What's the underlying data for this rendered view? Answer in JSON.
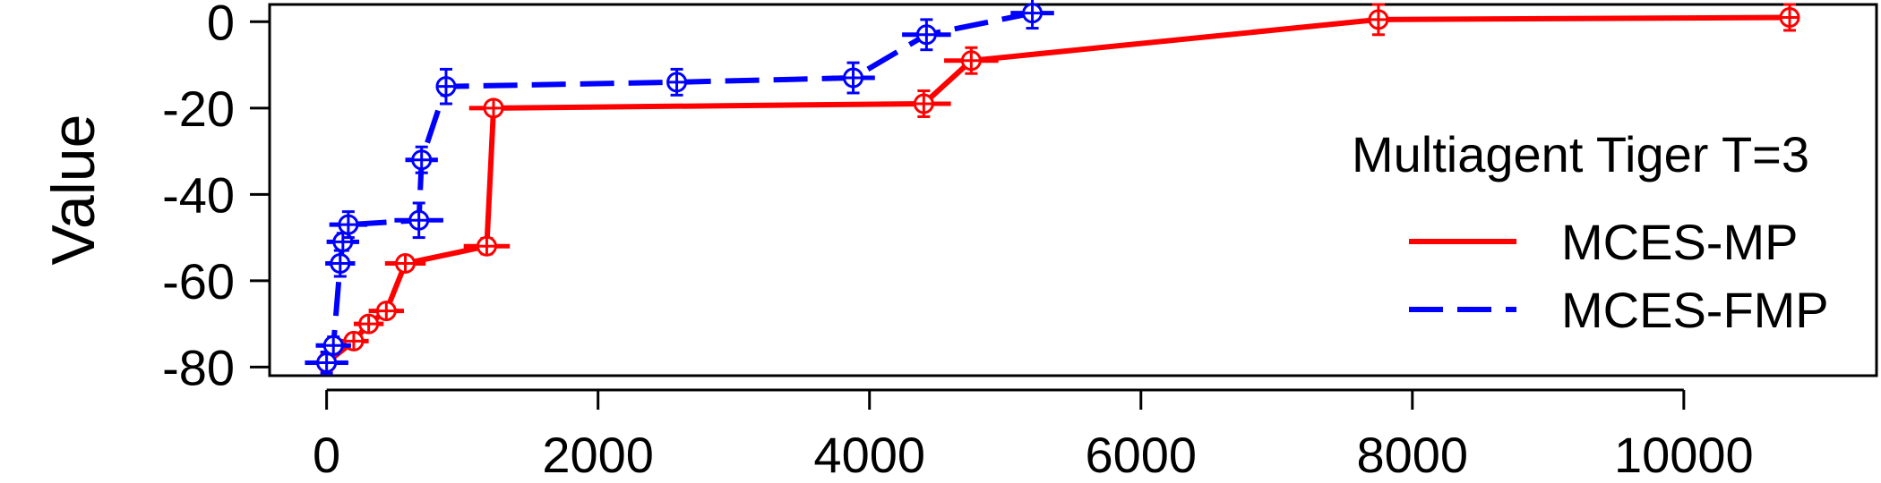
{
  "chart_data": {
    "type": "line",
    "ylabel": "Value",
    "xlabel": "",
    "xlim": [
      -420,
      11420
    ],
    "ylim": [
      -82,
      4
    ],
    "x_ticks": [
      0,
      2000,
      4000,
      6000,
      8000,
      10000
    ],
    "y_ticks": [
      0,
      -20,
      -40,
      -60,
      -80
    ],
    "grid": false,
    "legend": {
      "title": "Multiagent Tiger T=3",
      "placement": "right",
      "entries": [
        "MCES-MP",
        "MCES-FMP"
      ]
    },
    "series": [
      {
        "name": "MCES-MP",
        "color": "#ff0000",
        "dash": "solid",
        "points": [
          {
            "x": 0,
            "y": -79,
            "xerr": 80,
            "yerr": 2.0
          },
          {
            "x": 200,
            "y": -74,
            "xerr": 110,
            "yerr": 1.5
          },
          {
            "x": 310,
            "y": -70,
            "xerr": 110,
            "yerr": 1.5
          },
          {
            "x": 440,
            "y": -67,
            "xerr": 130,
            "yerr": 1.5
          },
          {
            "x": 580,
            "y": -56,
            "xerr": 150,
            "yerr": 1.5
          },
          {
            "x": 1180,
            "y": -52,
            "xerr": 170,
            "yerr": 1.8
          },
          {
            "x": 1230,
            "y": -20,
            "xerr": 180,
            "yerr": 1.0
          },
          {
            "x": 4400,
            "y": -19,
            "xerr": 200,
            "yerr": 3.0
          },
          {
            "x": 4750,
            "y": -9,
            "xerr": 200,
            "yerr": 3.0
          },
          {
            "x": 7750,
            "y": 0.5,
            "xerr": 0,
            "yerr": 3.5
          },
          {
            "x": 10780,
            "y": 1,
            "xerr": 0,
            "yerr": 3.0
          }
        ]
      },
      {
        "name": "MCES-FMP",
        "color": "#0000ff",
        "dash": "dashed",
        "points": [
          {
            "x": 0,
            "y": -79,
            "xerr": 160,
            "yerr": 2.5
          },
          {
            "x": 50,
            "y": -75,
            "xerr": 130,
            "yerr": 2.0
          },
          {
            "x": 100,
            "y": -56,
            "xerr": 110,
            "yerr": 3.0
          },
          {
            "x": 120,
            "y": -51,
            "xerr": 120,
            "yerr": 2.0
          },
          {
            "x": 160,
            "y": -47,
            "xerr": 140,
            "yerr": 3.0
          },
          {
            "x": 680,
            "y": -46,
            "xerr": 180,
            "yerr": 4.0
          },
          {
            "x": 700,
            "y": -32,
            "xerr": 120,
            "yerr": 3.0
          },
          {
            "x": 880,
            "y": -15,
            "xerr": 0,
            "yerr": 4.0
          },
          {
            "x": 2580,
            "y": -14,
            "xerr": 0,
            "yerr": 3.0
          },
          {
            "x": 3880,
            "y": -13,
            "xerr": 160,
            "yerr": 3.5
          },
          {
            "x": 4420,
            "y": -3,
            "xerr": 180,
            "yerr": 3.5
          },
          {
            "x": 5200,
            "y": 2,
            "xerr": 160,
            "yerr": 3.5
          }
        ]
      }
    ]
  }
}
